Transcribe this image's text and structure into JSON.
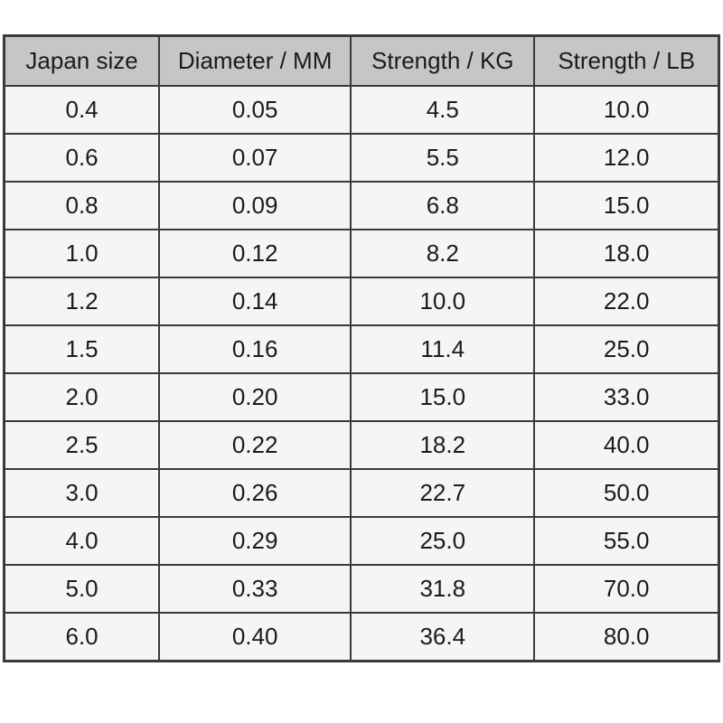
{
  "chart_data": {
    "type": "table",
    "columns": [
      "Japan size",
      "Diameter / MM",
      "Strength / KG",
      "Strength / LB"
    ],
    "rows": [
      [
        "0.4",
        "0.05",
        "4.5",
        "10.0"
      ],
      [
        "0.6",
        "0.07",
        "5.5",
        "12.0"
      ],
      [
        "0.8",
        "0.09",
        "6.8",
        "15.0"
      ],
      [
        "1.0",
        "0.12",
        "8.2",
        "18.0"
      ],
      [
        "1.2",
        "0.14",
        "10.0",
        "22.0"
      ],
      [
        "1.5",
        "0.16",
        "11.4",
        "25.0"
      ],
      [
        "2.0",
        "0.20",
        "15.0",
        "33.0"
      ],
      [
        "2.5",
        "0.22",
        "18.2",
        "40.0"
      ],
      [
        "3.0",
        "0.26",
        "22.7",
        "50.0"
      ],
      [
        "4.0",
        "0.29",
        "25.0",
        "55.0"
      ],
      [
        "5.0",
        "0.33",
        "31.8",
        "70.0"
      ],
      [
        "6.0",
        "0.40",
        "36.4",
        "80.0"
      ]
    ],
    "layout": {
      "column_widths_pct": [
        21.7,
        26.8,
        25.7,
        25.8
      ],
      "grid": true,
      "text_align": "center"
    },
    "colors": {
      "header_bg": "#c6c6c6",
      "cell_bg": "#f5f5f5",
      "border": "#3a3a3a",
      "text": "#1b1b1b",
      "page_bg": "#ffffff"
    }
  }
}
